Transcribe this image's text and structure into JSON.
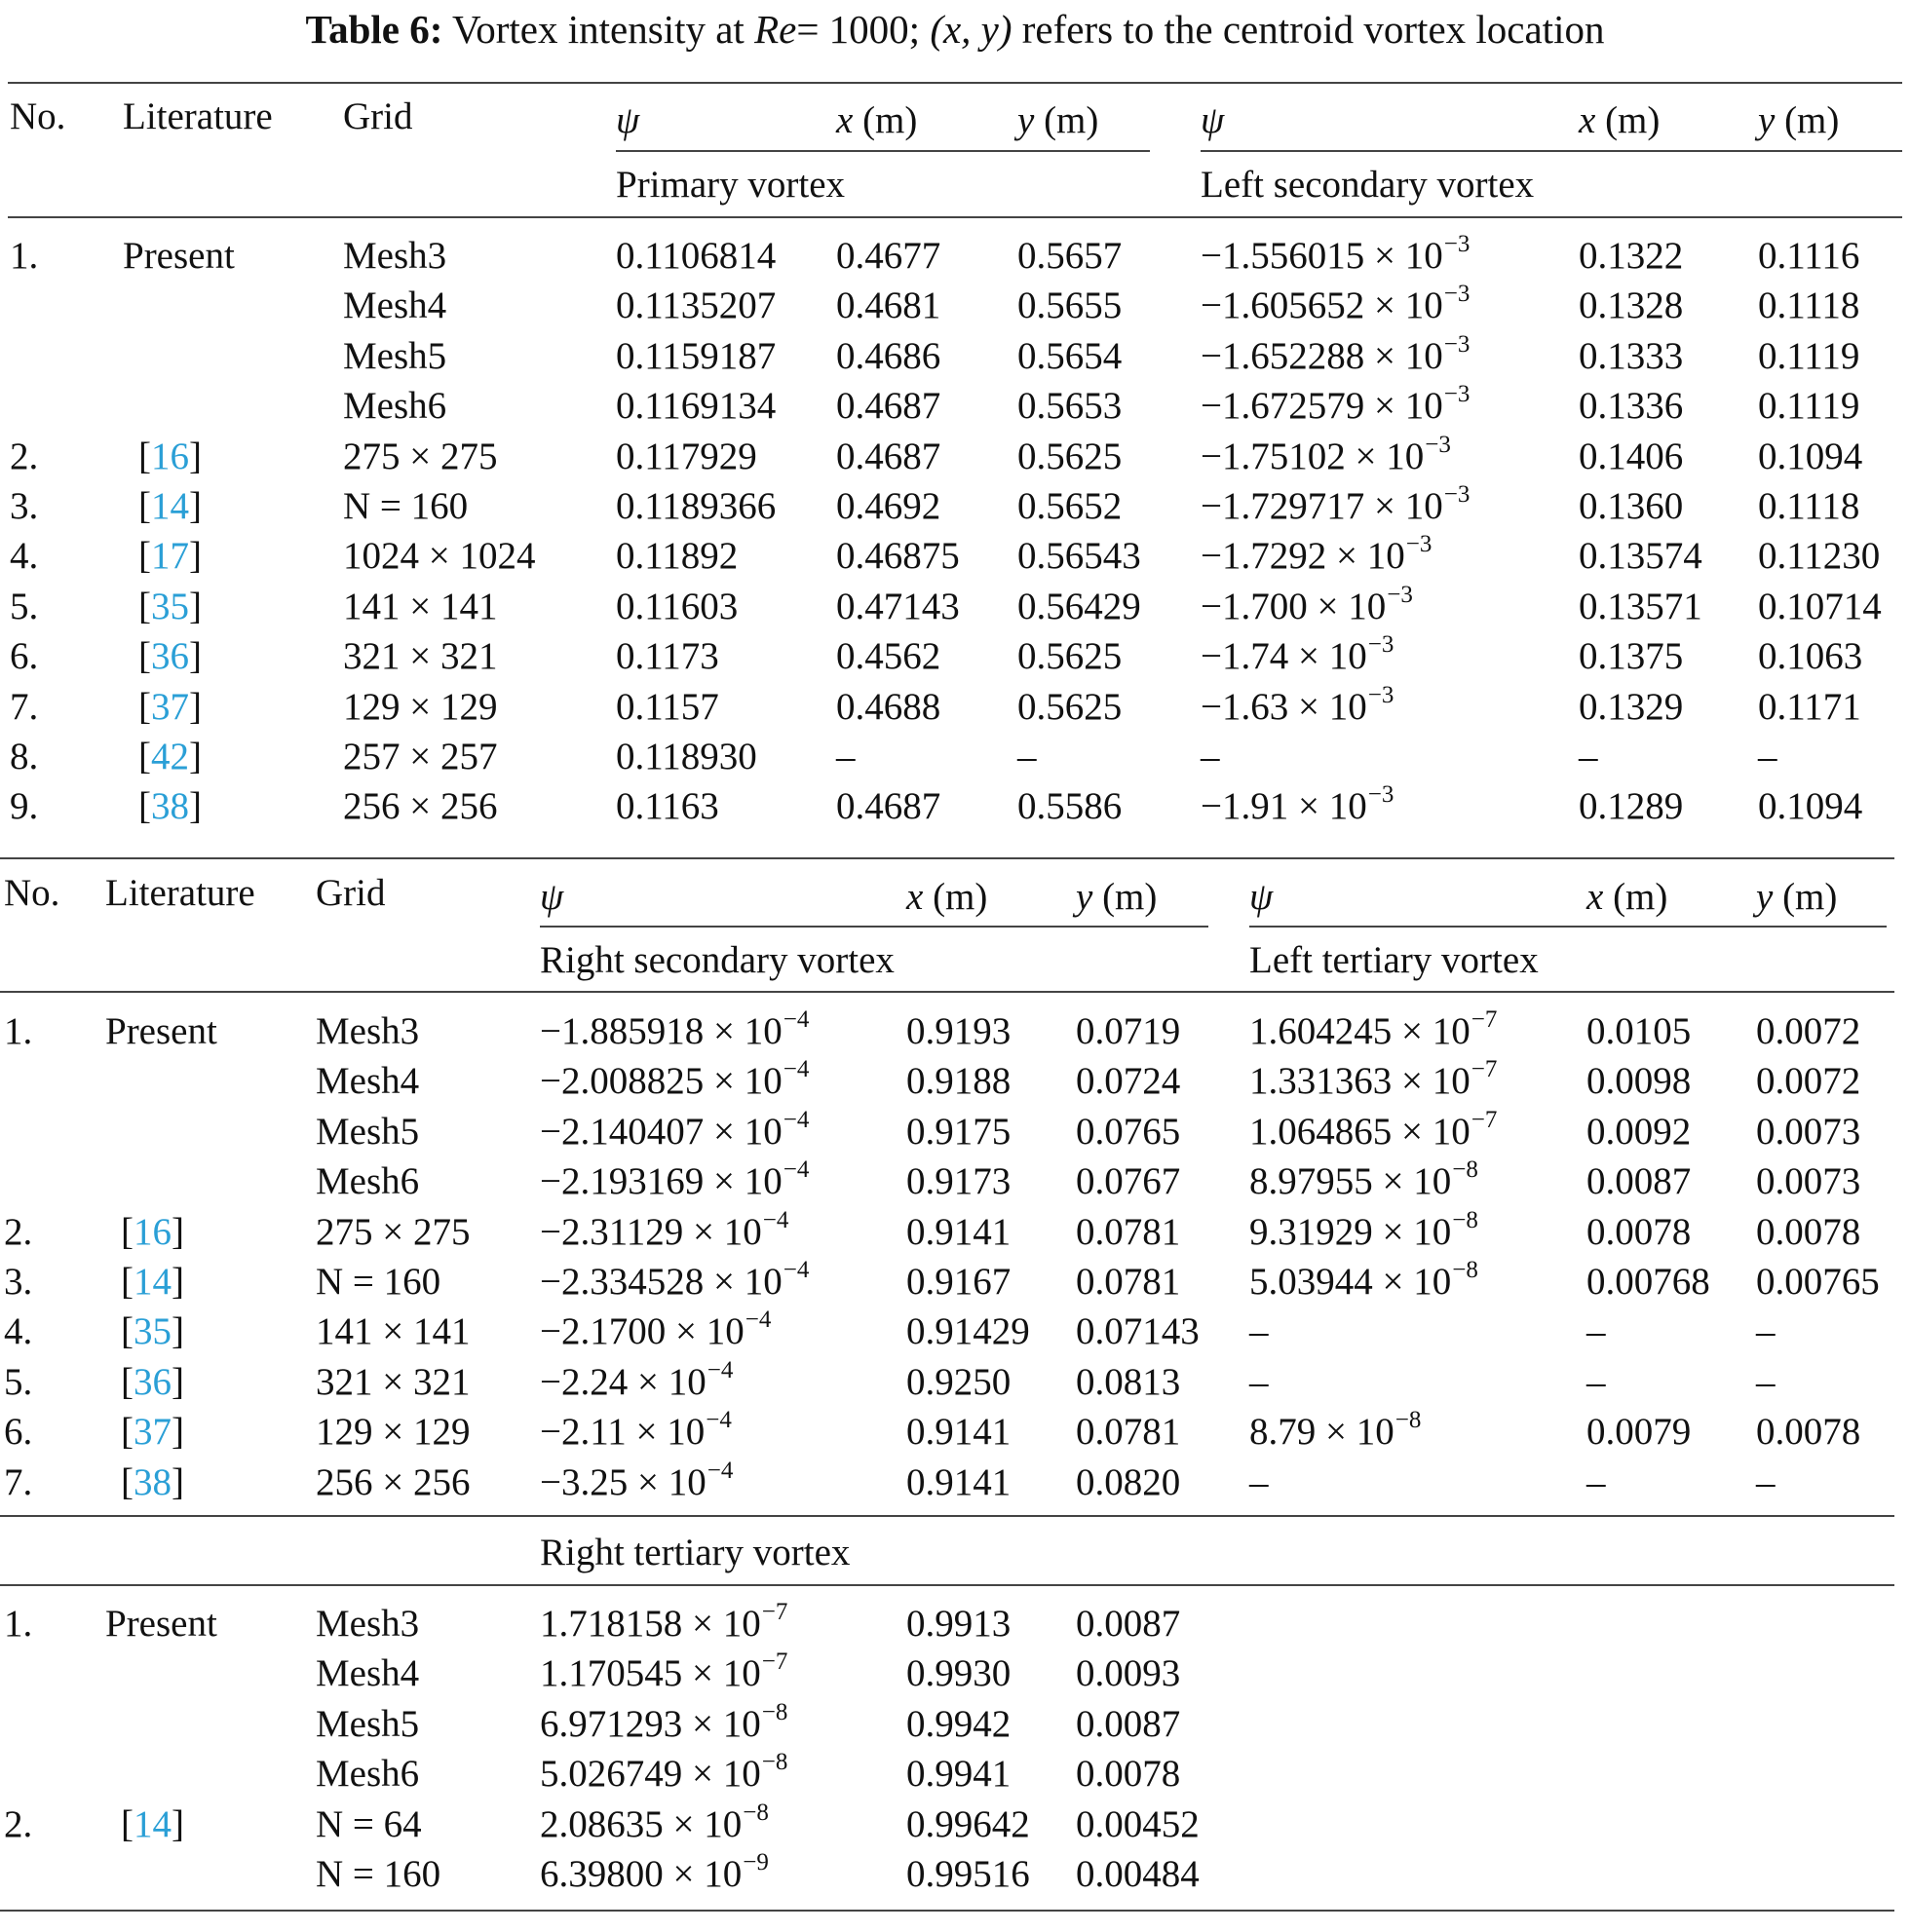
{
  "caption": {
    "label": "Table 6:",
    "before_re": "Vortex intensity at",
    "re_symbol": "Re",
    "re_value": "= 1000;",
    "xy": "(x, y)",
    "after": "refers to the centroid vortex location"
  },
  "header": {
    "no": "No.",
    "literature": "Literature",
    "grid": "Grid",
    "psi": "ψ",
    "x": "x",
    "y": "y",
    "unit": "(m)"
  },
  "sections": {
    "primary": "Primary vortex",
    "left_secondary": "Left secondary vortex",
    "right_secondary": "Right secondary vortex",
    "left_tertiary": "Left tertiary vortex",
    "right_tertiary": "Right tertiary vortex"
  },
  "part1_rows": [
    {
      "no": "1.",
      "lit": "Present",
      "grid": "Mesh3",
      "psi": "0.1106814",
      "x": "0.4677",
      "y": "0.5657",
      "psi2": "−1.556015 × 10",
      "exp2": "−3",
      "x2": "0.1322",
      "y2": "0.1116"
    },
    {
      "no": "",
      "lit": "",
      "grid": "Mesh4",
      "psi": "0.1135207",
      "x": "0.4681",
      "y": "0.5655",
      "psi2": "−1.605652 × 10",
      "exp2": "−3",
      "x2": "0.1328",
      "y2": "0.1118"
    },
    {
      "no": "",
      "lit": "",
      "grid": "Mesh5",
      "psi": "0.1159187",
      "x": "0.4686",
      "y": "0.5654",
      "psi2": "−1.652288 × 10",
      "exp2": "−3",
      "x2": "0.1333",
      "y2": "0.1119"
    },
    {
      "no": "",
      "lit": "",
      "grid": "Mesh6",
      "psi": "0.1169134",
      "x": "0.4687",
      "y": "0.5653",
      "psi2": "−1.672579 × 10",
      "exp2": "−3",
      "x2": "0.1336",
      "y2": "0.1119"
    },
    {
      "no": "2.",
      "lit": "[16]",
      "grid": "275 × 275",
      "psi": "0.117929",
      "x": "0.4687",
      "y": "0.5625",
      "psi2": "−1.75102 × 10",
      "exp2": "−3",
      "x2": "0.1406",
      "y2": "0.1094"
    },
    {
      "no": "3.",
      "lit": "[14]",
      "grid": "N = 160",
      "psi": "0.1189366",
      "x": "0.4692",
      "y": "0.5652",
      "psi2": "−1.729717 × 10",
      "exp2": "−3",
      "x2": "0.1360",
      "y2": "0.1118"
    },
    {
      "no": "4.",
      "lit": "[17]",
      "grid": "1024 × 1024",
      "psi": "0.11892",
      "x": "0.46875",
      "y": "0.56543",
      "psi2": "−1.7292 × 10",
      "exp2": "−3",
      "x2": "0.13574",
      "y2": "0.11230"
    },
    {
      "no": "5.",
      "lit": "[35]",
      "grid": "141 × 141",
      "psi": "0.11603",
      "x": "0.47143",
      "y": "0.56429",
      "psi2": "−1.700 × 10",
      "exp2": "−3",
      "x2": "0.13571",
      "y2": "0.10714"
    },
    {
      "no": "6.",
      "lit": "[36]",
      "grid": "321 × 321",
      "psi": "0.1173",
      "x": "0.4562",
      "y": "0.5625",
      "psi2": "−1.74 × 10",
      "exp2": "−3",
      "x2": "0.1375",
      "y2": "0.1063"
    },
    {
      "no": "7.",
      "lit": "[37]",
      "grid": "129 × 129",
      "psi": "0.1157",
      "x": "0.4688",
      "y": "0.5625",
      "psi2": "−1.63 × 10",
      "exp2": "−3",
      "x2": "0.1329",
      "y2": "0.1171"
    },
    {
      "no": "8.",
      "lit": "[42]",
      "grid": "257 × 257",
      "psi": "0.118930",
      "x": "–",
      "y": "–",
      "psi2": "–",
      "exp2": "",
      "x2": "–",
      "y2": "–"
    },
    {
      "no": "9.",
      "lit": "[38]",
      "grid": "256 × 256",
      "psi": "0.1163",
      "x": "0.4687",
      "y": "0.5586",
      "psi2": "−1.91 × 10",
      "exp2": "−3",
      "x2": "0.1289",
      "y2": "0.1094"
    }
  ],
  "part2_rows": [
    {
      "no": "1.",
      "lit": "Present",
      "grid": "Mesh3",
      "psi": "−1.885918 × 10",
      "exp": "−4",
      "x": "0.9193",
      "y": "0.0719",
      "psi2": "1.604245 × 10",
      "exp2": "−7",
      "x2": "0.0105",
      "y2": "0.0072"
    },
    {
      "no": "",
      "lit": "",
      "grid": "Mesh4",
      "psi": "−2.008825 × 10",
      "exp": "−4",
      "x": "0.9188",
      "y": "0.0724",
      "psi2": "1.331363 × 10",
      "exp2": "−7",
      "x2": "0.0098",
      "y2": "0.0072"
    },
    {
      "no": "",
      "lit": "",
      "grid": "Mesh5",
      "psi": "−2.140407 × 10",
      "exp": "−4",
      "x": "0.9175",
      "y": "0.0765",
      "psi2": "1.064865 × 10",
      "exp2": "−7",
      "x2": "0.0092",
      "y2": "0.0073"
    },
    {
      "no": "",
      "lit": "",
      "grid": "Mesh6",
      "psi": "−2.193169 × 10",
      "exp": "−4",
      "x": "0.9173",
      "y": "0.0767",
      "psi2": "8.97955 × 10",
      "exp2": "−8",
      "x2": "0.0087",
      "y2": "0.0073"
    },
    {
      "no": "2.",
      "lit": "[16]",
      "grid": "275 × 275",
      "psi": "−2.31129 × 10",
      "exp": "−4",
      "x": "0.9141",
      "y": "0.0781",
      "psi2": "9.31929 × 10",
      "exp2": "−8",
      "x2": "0.0078",
      "y2": "0.0078"
    },
    {
      "no": "3.",
      "lit": "[14]",
      "grid": "N = 160",
      "psi": "−2.334528 × 10",
      "exp": "−4",
      "x": "0.9167",
      "y": "0.0781",
      "psi2": "5.03944 × 10",
      "exp2": "−8",
      "x2": "0.00768",
      "y2": "0.00765"
    },
    {
      "no": "4.",
      "lit": "[35]",
      "grid": "141 × 141",
      "psi": "−2.1700 × 10",
      "exp": "−4",
      "x": "0.91429",
      "y": "0.07143",
      "psi2": "–",
      "exp2": "",
      "x2": "–",
      "y2": "–"
    },
    {
      "no": "5.",
      "lit": "[36]",
      "grid": "321 × 321",
      "psi": "−2.24 × 10",
      "exp": "−4",
      "x": "0.9250",
      "y": "0.0813",
      "psi2": "–",
      "exp2": "",
      "x2": "–",
      "y2": "–"
    },
    {
      "no": "6.",
      "lit": "[37]",
      "grid": "129 × 129",
      "psi": "−2.11 × 10",
      "exp": "−4",
      "x": "0.9141",
      "y": "0.0781",
      "psi2": "8.79 × 10",
      "exp2": "−8",
      "x2": "0.0079",
      "y2": "0.0078"
    },
    {
      "no": "7.",
      "lit": "[38]",
      "grid": "256 × 256",
      "psi": "−3.25 × 10",
      "exp": "−4",
      "x": "0.9141",
      "y": "0.0820",
      "psi2": "–",
      "exp2": "",
      "x2": "–",
      "y2": "–"
    }
  ],
  "part3_rows": [
    {
      "no": "1.",
      "lit": "Present",
      "grid": "Mesh3",
      "psi": "1.718158 × 10",
      "exp": "−7",
      "x": "0.9913",
      "y": "0.0087"
    },
    {
      "no": "",
      "lit": "",
      "grid": "Mesh4",
      "psi": "1.170545 × 10",
      "exp": "−7",
      "x": "0.9930",
      "y": "0.0093"
    },
    {
      "no": "",
      "lit": "",
      "grid": "Mesh5",
      "psi": "6.971293 × 10",
      "exp": "−8",
      "x": "0.9942",
      "y": "0.0087"
    },
    {
      "no": "",
      "lit": "",
      "grid": "Mesh6",
      "psi": "5.026749 × 10",
      "exp": "−8",
      "x": "0.9941",
      "y": "0.0078"
    },
    {
      "no": "2.",
      "lit": "[14]",
      "grid": "N = 64",
      "psi": "2.08635 × 10",
      "exp": "−8",
      "x": "0.99642",
      "y": "0.00452"
    },
    {
      "no": "",
      "lit": "",
      "grid": "N = 160",
      "psi": "6.39800 × 10",
      "exp": "−9",
      "x": "0.99516",
      "y": "0.00484"
    }
  ]
}
